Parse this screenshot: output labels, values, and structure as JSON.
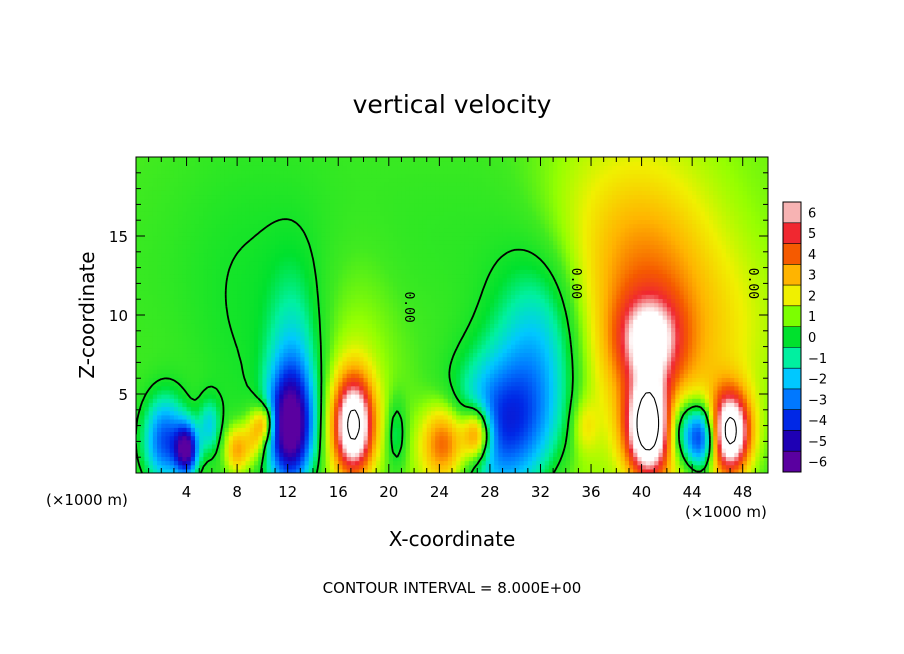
{
  "chart_data": {
    "type": "heatmap",
    "title": "vertical velocity",
    "xlabel": "X-coordinate",
    "ylabel": "Z-coordinate",
    "x_unit": "(×1000 m)",
    "y_unit": "(×1000 m)",
    "xlim": [
      0,
      50
    ],
    "ylim": [
      0,
      20
    ],
    "x_ticks": [
      4,
      8,
      12,
      16,
      20,
      24,
      28,
      32,
      36,
      40,
      44,
      48
    ],
    "y_ticks": [
      5,
      10,
      15
    ],
    "footer": "CONTOUR INTERVAL = 8.000E+00",
    "contour_labels": [
      {
        "text": "0.00",
        "x": 21.3,
        "z": 10.5
      },
      {
        "text": "0.00",
        "x": 34.5,
        "z": 12.0
      },
      {
        "text": "0.00",
        "x": 48.5,
        "z": 12.0
      }
    ],
    "colorbar": {
      "min": -6,
      "max": 6,
      "tick_values": [
        6,
        5,
        4,
        3,
        2,
        1,
        0,
        -1,
        -2,
        -3,
        -4,
        -5,
        -6
      ],
      "tick_labels": [
        "6",
        "5",
        "4",
        "3",
        "2",
        "1",
        "0",
        "−1",
        "−2",
        "−3",
        "−4",
        "−5",
        "−6"
      ],
      "colors": [
        "#f7b3b3",
        "#f02830",
        "#f55a00",
        "#ffb400",
        "#f0f000",
        "#7cff00",
        "#00e12d",
        "#00f0a0",
        "#00c8ff",
        "#0078ff",
        "#0028e6",
        "#1e00b4",
        "#5a00a0"
      ]
    },
    "features": [
      {
        "x": 2.3,
        "z": 2.0,
        "sx": 1.2,
        "sz": 2.0,
        "amp": -4.5
      },
      {
        "x": 4.0,
        "z": 1.5,
        "sx": 0.6,
        "sz": 1.1,
        "amp": -6.2
      },
      {
        "x": 5.8,
        "z": 3.0,
        "sx": 0.6,
        "sz": 1.2,
        "amp": -2.2
      },
      {
        "x": 8.0,
        "z": 1.5,
        "sx": 0.7,
        "sz": 1.1,
        "amp": 3.0
      },
      {
        "x": 9.5,
        "z": 2.5,
        "sx": 0.6,
        "sz": 1.2,
        "amp": 2.5
      },
      {
        "x": 10.3,
        "z": 3.2,
        "sx": 0.5,
        "sz": 0.8,
        "amp": 3.0
      },
      {
        "x": 12.2,
        "z": 2.8,
        "sx": 1.2,
        "sz": 2.5,
        "amp": -6.0
      },
      {
        "x": 12.5,
        "z": 5.5,
        "sx": 1.5,
        "sz": 4.5,
        "amp": -2.4
      },
      {
        "x": 17.2,
        "z": 3.0,
        "sx": 1.1,
        "sz": 2.2,
        "amp": 7.5
      },
      {
        "x": 17.5,
        "z": 7.0,
        "sx": 2.5,
        "sz": 5.5,
        "amp": 1.1
      },
      {
        "x": 20.6,
        "z": 2.5,
        "sx": 0.5,
        "sz": 1.5,
        "amp": -1.6
      },
      {
        "x": 24.5,
        "z": 2.0,
        "sx": 1.3,
        "sz": 1.7,
        "amp": 4.0
      },
      {
        "x": 27.0,
        "z": 2.5,
        "sx": 0.8,
        "sz": 1.2,
        "amp": 5.0
      },
      {
        "x": 29.0,
        "z": 3.0,
        "sx": 3.0,
        "sz": 3.0,
        "amp": -4.2
      },
      {
        "x": 32.0,
        "z": 8.0,
        "sx": 2.5,
        "sz": 4.0,
        "amp": -2.6
      },
      {
        "x": 35.5,
        "z": 3.0,
        "sx": 0.7,
        "sz": 1.2,
        "amp": 1.2
      },
      {
        "x": 40.5,
        "z": 10.0,
        "sx": 4.0,
        "sz": 6.0,
        "amp": 3.2
      },
      {
        "x": 40.6,
        "z": 8.5,
        "sx": 1.6,
        "sz": 1.8,
        "amp": 3.8
      },
      {
        "x": 40.5,
        "z": 2.8,
        "sx": 1.2,
        "sz": 2.2,
        "amp": 7.5
      },
      {
        "x": 43.0,
        "z": 2.8,
        "sx": 0.8,
        "sz": 1.5,
        "amp": -2.4
      },
      {
        "x": 44.7,
        "z": 2.3,
        "sx": 0.9,
        "sz": 1.5,
        "amp": -6.0
      },
      {
        "x": 47.0,
        "z": 2.6,
        "sx": 1.1,
        "sz": 1.8,
        "amp": 7.5
      },
      {
        "x": 10.0,
        "z": 12.0,
        "sx": 8.0,
        "sz": 8.0,
        "amp": -0.9
      },
      {
        "x": 28.0,
        "z": 15.0,
        "sx": 7.0,
        "sz": 6.0,
        "amp": -0.5
      },
      {
        "x": 48.0,
        "z": 9.0,
        "sx": 2.5,
        "sz": 4.0,
        "amp": 0.6
      },
      {
        "x": 36.0,
        "z": 17.0,
        "sx": 4.0,
        "sz": 4.0,
        "amp": 0.6
      }
    ]
  }
}
